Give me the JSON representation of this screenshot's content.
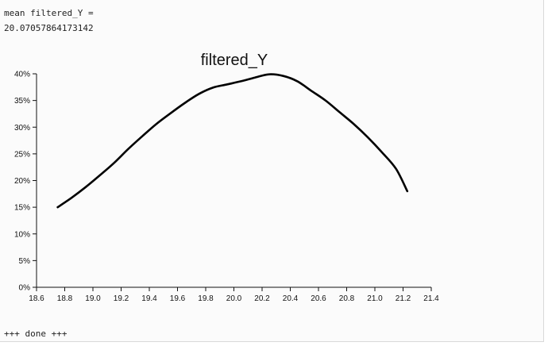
{
  "output": {
    "line1": "mean filtered_Y =",
    "line2": "20.07057864173142",
    "done": "+++ done +++"
  },
  "chart_data": {
    "type": "line",
    "title": "filtered_Y",
    "xlabel": "",
    "ylabel": "",
    "xlim": [
      18.6,
      21.4
    ],
    "ylim": [
      0,
      0.4
    ],
    "x_ticks": [
      "18.6",
      "18.8",
      "19.0",
      "19.2",
      "19.4",
      "19.6",
      "19.8",
      "20.0",
      "20.2",
      "20.4",
      "20.6",
      "20.8",
      "21.0",
      "21.2",
      "21.4"
    ],
    "y_ticks": [
      "0%",
      "5%",
      "10%",
      "15%",
      "20%",
      "25%",
      "30%",
      "35%",
      "40%"
    ],
    "grid": false,
    "series": [
      {
        "color": "#000000",
        "x": [
          18.75,
          18.85,
          18.95,
          19.05,
          19.15,
          19.25,
          19.35,
          19.45,
          19.55,
          19.65,
          19.75,
          19.85,
          19.95,
          20.05,
          20.15,
          20.25,
          20.35,
          20.45,
          20.55,
          20.65,
          20.75,
          20.85,
          20.95,
          21.05,
          21.15,
          21.23
        ],
        "y": [
          0.15,
          0.168,
          0.188,
          0.21,
          0.233,
          0.259,
          0.283,
          0.306,
          0.326,
          0.345,
          0.362,
          0.374,
          0.38,
          0.386,
          0.393,
          0.399,
          0.396,
          0.386,
          0.368,
          0.35,
          0.328,
          0.306,
          0.281,
          0.253,
          0.222,
          0.18
        ]
      }
    ]
  }
}
